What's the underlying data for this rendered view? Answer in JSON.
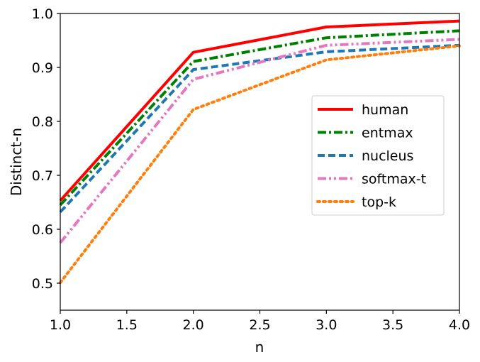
{
  "chart_data": {
    "type": "line",
    "title": "",
    "xlabel": "n",
    "ylabel": "Distinct-n",
    "xlim": [
      1.0,
      4.0
    ],
    "ylim": [
      0.45,
      1.0
    ],
    "xticks": [
      "1.0",
      "1.5",
      "2.0",
      "2.5",
      "3.0",
      "3.5",
      "4.0"
    ],
    "yticks": [
      "0.5",
      "0.6",
      "0.7",
      "0.8",
      "0.9",
      "1.0"
    ],
    "grid": false,
    "legend_position": "center-right",
    "x": [
      1.0,
      2.0,
      3.0,
      4.0
    ],
    "series": [
      {
        "name": "human",
        "values": [
          0.653,
          0.928,
          0.975,
          0.986
        ],
        "color": "#ff0000",
        "dash": "solid"
      },
      {
        "name": "entmax",
        "values": [
          0.645,
          0.911,
          0.955,
          0.968
        ],
        "color": "#008000",
        "dash": "dashdot"
      },
      {
        "name": "nucleus",
        "values": [
          0.632,
          0.896,
          0.929,
          0.941
        ],
        "color": "#1f77b4",
        "dash": "dashed"
      },
      {
        "name": "softmax-t",
        "values": [
          0.575,
          0.878,
          0.941,
          0.952
        ],
        "color": "#e377c2",
        "dash": "dashdotdot"
      },
      {
        "name": "top-k",
        "values": [
          0.501,
          0.822,
          0.914,
          0.94
        ],
        "color": "#ff7f0e",
        "dash": "dotted"
      }
    ]
  }
}
